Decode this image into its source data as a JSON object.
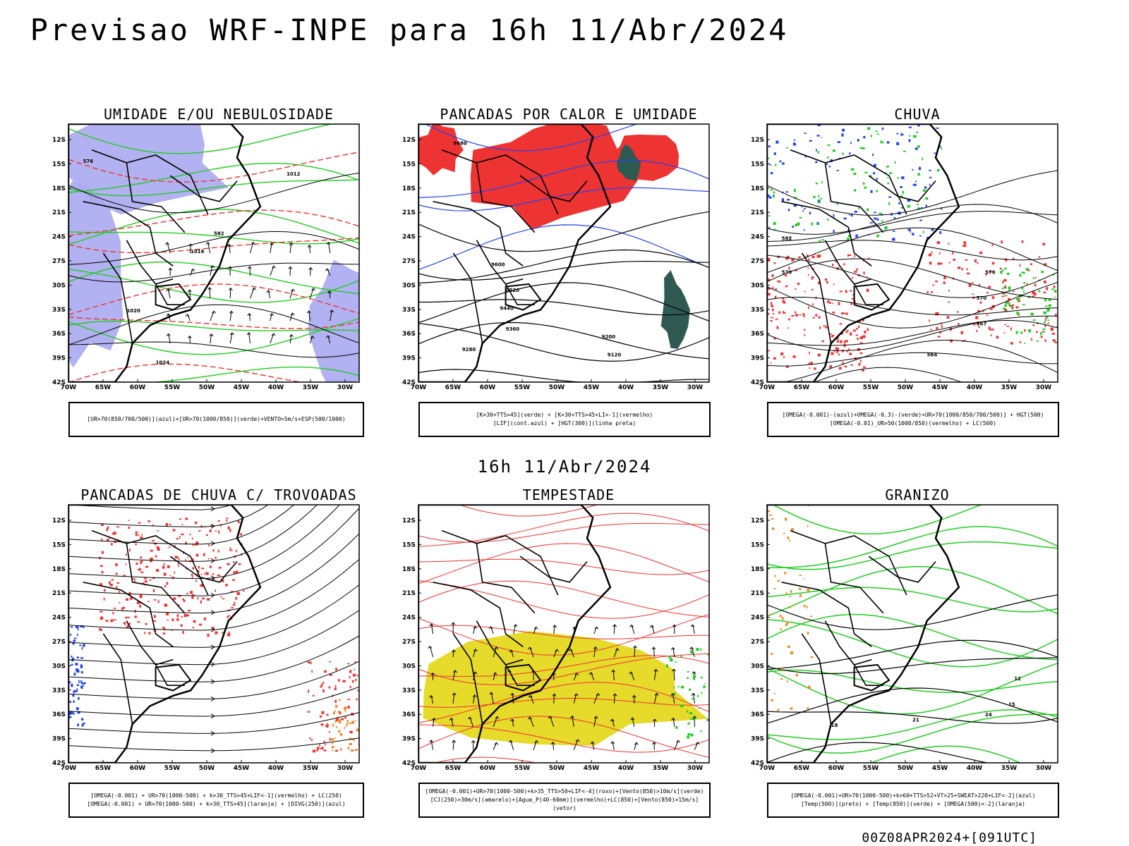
{
  "header": {
    "main_title": "Previsao WRF-INPE  para 16h 11/Abr/2024",
    "mid_title": "16h 11/Abr/2024",
    "footer": "00Z08APR2024+[091UTC]"
  },
  "axes": {
    "lat_labels": [
      "12S",
      "15S",
      "18S",
      "21S",
      "24S",
      "27S",
      "30S",
      "33S",
      "36S",
      "39S",
      "42S"
    ],
    "lon_labels": [
      "70W",
      "65W",
      "60W",
      "55W",
      "50W",
      "45W",
      "40W",
      "35W",
      "30W"
    ]
  },
  "colors": {
    "coast": "#000000",
    "lavender": "#aaa8ef",
    "green": "#22cc22",
    "red": "#ee3333",
    "blue": "#2244ee",
    "darkteal": "#2f5a52",
    "yellow": "#e6da2a",
    "orange": "#ee8822"
  },
  "panels": [
    {
      "title": "UMIDADE E/OU NEBULOSIDADE",
      "legend": [
        "[UR>70(850/700/500)](azul)+[UR>70(1000/850)](verde)+VENTO>5m/s+ESP(500/1000)"
      ],
      "contour_labels": [
        "1012",
        "1016",
        "1020",
        "1024",
        "576",
        "582"
      ]
    },
    {
      "title": "PANCADAS POR CALOR E UMIDADE",
      "legend": [
        "[K>30+TTS>45](verde) + [K>30+TTS>45+LI<-1](vermelho)",
        "[LIF](cont.azul) + [HGT(300)](linha preta)"
      ],
      "contour_labels": [
        "9680",
        "9600",
        "9520",
        "9440",
        "9360",
        "9280",
        "9200",
        "9120"
      ]
    },
    {
      "title": "CHUVA",
      "legend": [
        "[OMEGA(-0.001)-(azul)+OMEGA(-0.3)-(verde)+UR>70(1000/850/700/500)] + HGT(500)",
        "[OMEGA(-0.01)_UR>50(1000/850)(vermelho) + LC(500)"
      ],
      "contour_labels": [
        "582",
        "579",
        "576",
        "570",
        "567",
        "564"
      ]
    },
    {
      "title": "PANCADAS DE CHUVA C/ TROVOADAS",
      "legend": [
        "[OMEGA(-0.001) + UR>70(1000-500) + k>30_TTS>45+LIF<-1](vermelho) + LC(250)",
        "[OMEGA(-0.001) + UR>70(1000-500) + k>30_TTS>45](laranja) + [DIVG(250)](azul)"
      ],
      "contour_labels": []
    },
    {
      "title": "TEMPESTADE",
      "legend": [
        "[OMEGA(-0.001)+UR>70(1000-500)+k>35_TTS>50+LIF<-4](roxo)+[Vento(850)>10m/s](verde)",
        "[CJ(250)>30m/s](amarelo)+[Agua_P(40-60mm)](vermelho)+LC(850)+[Vento(850)>15m/s](vetor)"
      ],
      "contour_labels": []
    },
    {
      "title": "GRANIZO",
      "legend": [
        "[OMEGA(-0.001)+UR>70(1000-500)+k>60+TTS>52+VT>25+SWEAT>220+LIF<-2](azul)",
        "[Temp(500)](preto) + [Temp(850)](verde) + [OMEGA(500)<-2](laranja)"
      ],
      "contour_labels": [
        "12",
        "15",
        "18",
        "21",
        "24"
      ]
    }
  ]
}
